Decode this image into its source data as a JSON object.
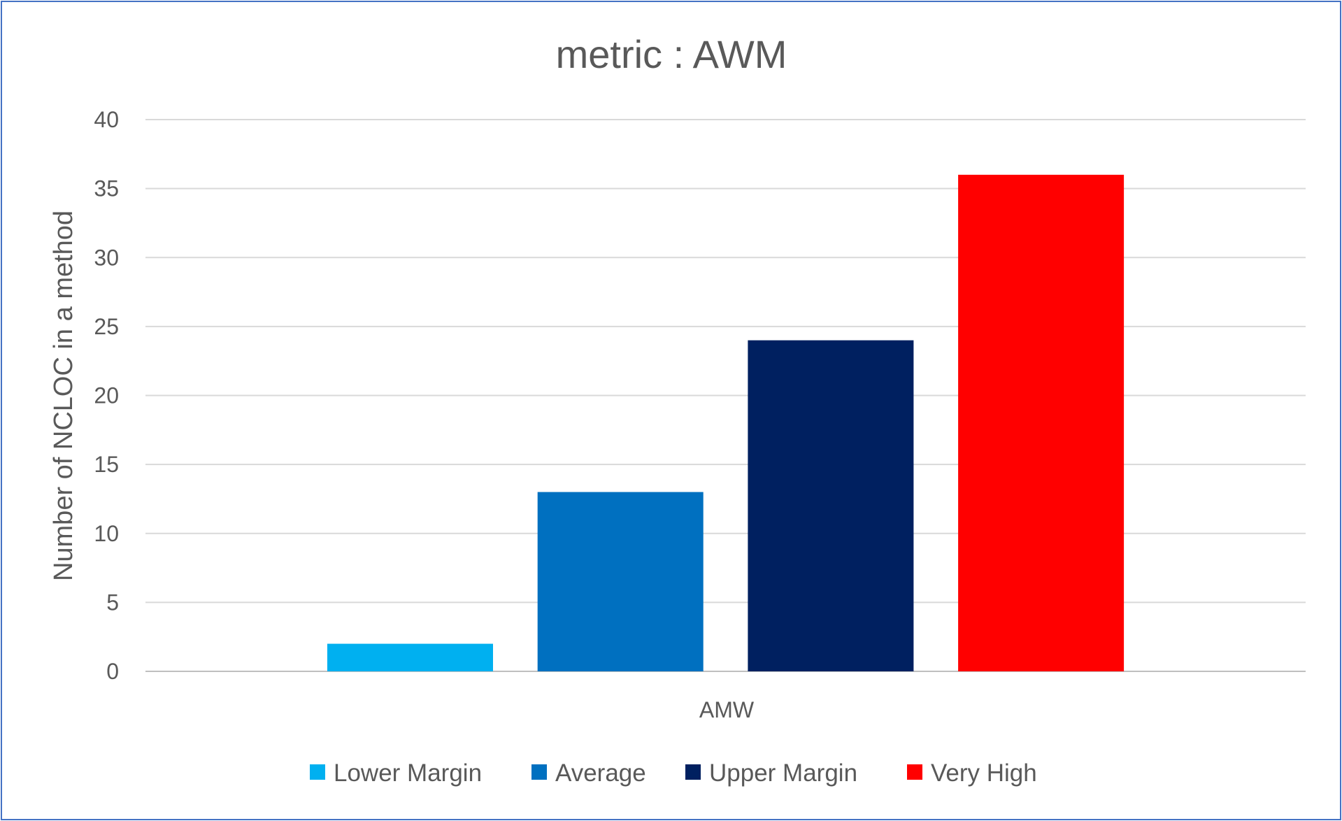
{
  "chart_data": {
    "type": "bar",
    "title": "metric : AWM",
    "xlabel": "",
    "ylabel": "Number of NCLOC in a method",
    "categories": [
      "AMW"
    ],
    "series": [
      {
        "name": "Lower Margin",
        "values": [
          2
        ],
        "color": "#00b0f0"
      },
      {
        "name": "Average",
        "values": [
          13
        ],
        "color": "#0070c0"
      },
      {
        "name": "Upper Margin",
        "values": [
          24
        ],
        "color": "#002060"
      },
      {
        "name": "Very High",
        "values": [
          36
        ],
        "color": "#ff0000"
      }
    ],
    "ylim": [
      0,
      40
    ],
    "yticks": [
      "0",
      "5",
      "10",
      "15",
      "20",
      "25",
      "30",
      "35",
      "40"
    ],
    "grid": true,
    "legend_position": "bottom"
  }
}
